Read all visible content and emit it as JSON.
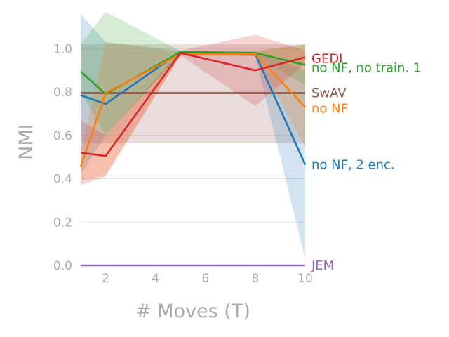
{
  "chart_data": {
    "type": "line",
    "title": "",
    "xlabel": "# Moves (T)",
    "ylabel": "NMI",
    "xlim": [
      1,
      10
    ],
    "ylim": [
      0,
      1.15
    ],
    "x_ticks": [
      2,
      4,
      6,
      8,
      10
    ],
    "x_tick_labels": [
      "2",
      "4",
      "6",
      "8",
      "10"
    ],
    "y_ticks": [
      0,
      0.2,
      0.4,
      0.6,
      0.8,
      1.0
    ],
    "y_tick_labels": [
      "0.0",
      "0.2",
      "0.4",
      "0.6",
      "0.8",
      "1.0"
    ],
    "grid": "horizontal",
    "legend": "labels at right end of lines",
    "x": [
      1,
      2,
      5,
      8,
      10
    ],
    "series": [
      {
        "name": "SwAV",
        "color": "#8c564b",
        "values": [
          0.795,
          0.795,
          0.795,
          0.795,
          0.795
        ],
        "band_lower": [
          0.565,
          0.565,
          0.565,
          0.565,
          0.565
        ],
        "band_upper": [
          1.02,
          1.02,
          1.02,
          1.02,
          1.02
        ]
      },
      {
        "name": "no NF, 2 enc.",
        "color": "#1f77b4",
        "values": [
          0.785,
          0.745,
          0.985,
          0.975,
          0.465
        ],
        "band_lower": [
          0.42,
          0.6,
          0.975,
          0.965,
          0.03
        ],
        "band_upper": [
          1.16,
          1.03,
          0.99,
          0.985,
          0.9
        ]
      },
      {
        "name": "no NF, no train. 1",
        "color": "#2ca02c",
        "values": [
          0.895,
          0.79,
          0.985,
          0.98,
          0.925
        ],
        "band_lower": [
          0.8,
          0.6,
          0.97,
          0.97,
          0.83
        ],
        "band_upper": [
          1.02,
          1.17,
          0.99,
          0.99,
          1.02
        ]
      },
      {
        "name": "no NF",
        "color": "#ff7f0e",
        "values": [
          0.455,
          0.795,
          0.975,
          0.975,
          0.73
        ],
        "band_lower": [
          0.39,
          0.42,
          0.965,
          0.965,
          0.55
        ],
        "band_upper": [
          0.52,
          1.03,
          0.985,
          0.985,
          1.02
        ]
      },
      {
        "name": "GEDI",
        "color": "#d62728",
        "values": [
          0.52,
          0.505,
          0.98,
          0.9,
          0.96
        ],
        "band_lower": [
          0.37,
          0.41,
          0.97,
          0.735,
          0.93
        ],
        "band_upper": [
          0.67,
          0.6,
          0.99,
          1.065,
          0.99
        ]
      },
      {
        "name": "JEM",
        "color": "#9467bd",
        "values": [
          0.0,
          0.0,
          0.0,
          0.0,
          0.0
        ],
        "band_lower": [
          0.0,
          0.0,
          0.0,
          0.0,
          0.0
        ],
        "band_upper": [
          0.0,
          0.0,
          0.0,
          0.0,
          0.0
        ]
      }
    ],
    "end_labels": [
      {
        "text": "GEDI",
        "series": "GEDI",
        "color": "#d62728"
      },
      {
        "text": "no NF, no train. 1",
        "series": "no NF, no train. 1",
        "color": "#2ca02c"
      },
      {
        "text": "SwAV",
        "series": "SwAV",
        "color": "#8c564b"
      },
      {
        "text": "no NF",
        "series": "no NF",
        "color": "#ff7f0e"
      },
      {
        "text": "no NF, 2 enc.",
        "series": "no NF, 2 enc.",
        "color": "#1f77b4"
      },
      {
        "text": "JEM",
        "series": "JEM",
        "color": "#9467bd"
      }
    ]
  }
}
